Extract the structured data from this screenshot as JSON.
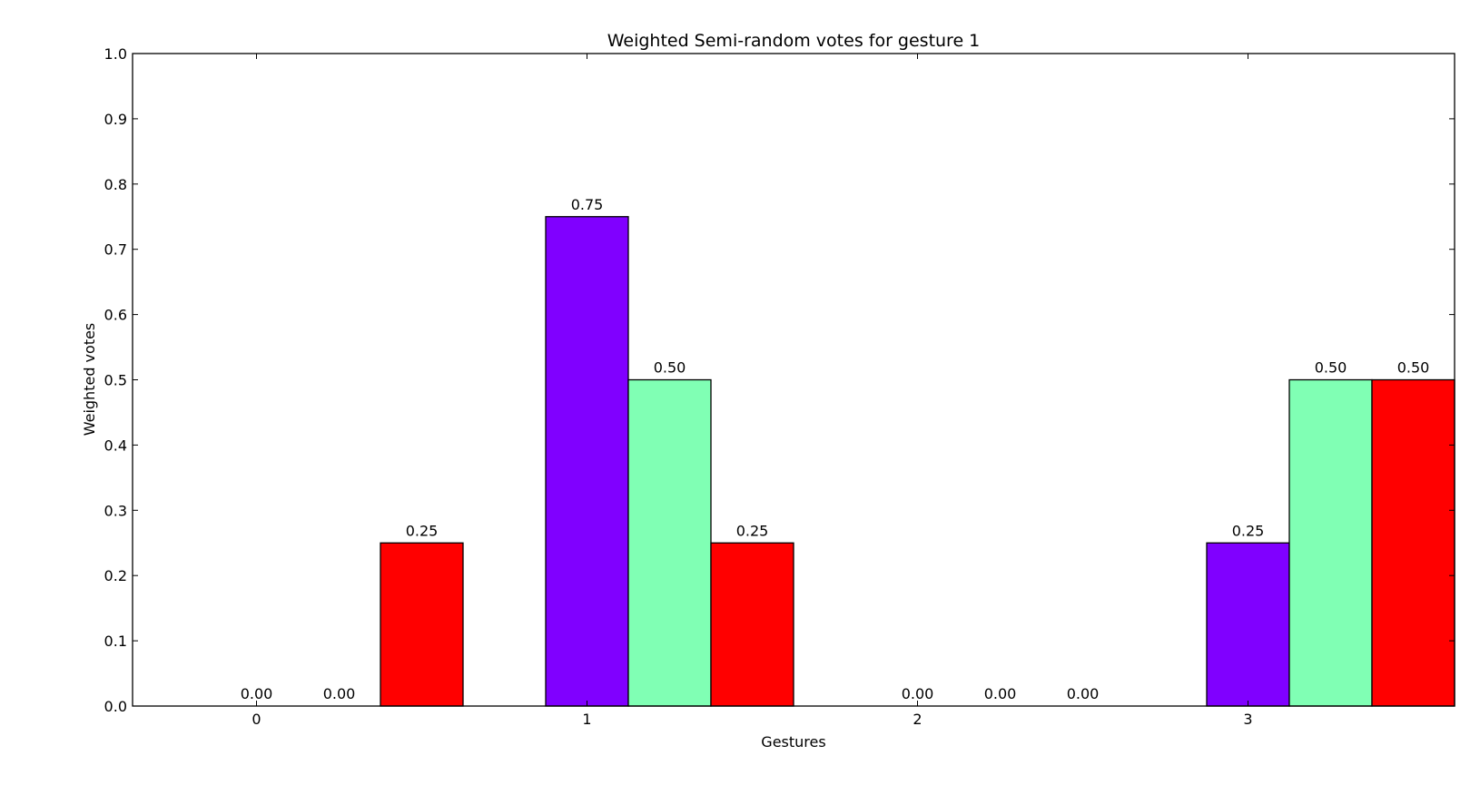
{
  "chart_data": {
    "type": "bar",
    "title": "Weighted Semi-random votes for gesture 1",
    "xlabel": "Gestures",
    "ylabel": "Weighted votes",
    "categories": [
      "0",
      "1",
      "2",
      "3"
    ],
    "ylim": [
      0.0,
      1.0
    ],
    "yticks": [
      "0.0",
      "0.1",
      "0.2",
      "0.3",
      "0.4",
      "0.5",
      "0.6",
      "0.7",
      "0.8",
      "0.9",
      "1.0"
    ],
    "grid": false,
    "series": [
      {
        "color": "#8000ff",
        "values": [
          0.0,
          0.75,
          0.0,
          0.25
        ],
        "labels": [
          "0.00",
          "0.75",
          "0.00",
          "0.25"
        ]
      },
      {
        "color": "#80ffb4",
        "values": [
          0.0,
          0.5,
          0.0,
          0.5
        ],
        "labels": [
          "0.00",
          "0.50",
          "0.00",
          "0.50"
        ]
      },
      {
        "color": "#ff0000",
        "values": [
          0.25,
          0.25,
          0.0,
          0.5
        ],
        "labels": [
          "0.25",
          "0.25",
          "0.00",
          "0.50"
        ]
      }
    ]
  }
}
